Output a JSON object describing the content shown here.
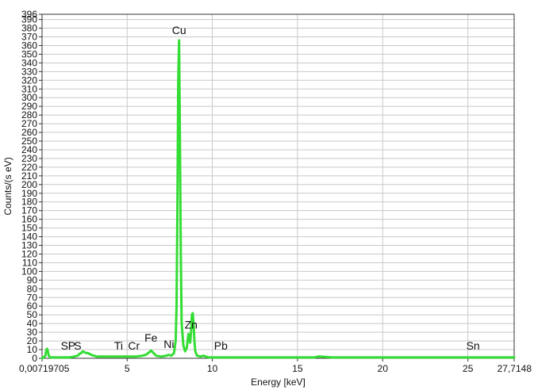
{
  "chart_data": {
    "type": "line",
    "title": "",
    "xlabel": "Energy [keV]",
    "ylabel": "Counts/(s eV)",
    "xlim": [
      0.00719705,
      27.7148
    ],
    "ylim": [
      0,
      396
    ],
    "x_ticks": [
      {
        "value": 0.00719705,
        "label": "0,00719705"
      },
      {
        "value": 5,
        "label": "5"
      },
      {
        "value": 10,
        "label": "10"
      },
      {
        "value": 15,
        "label": "15"
      },
      {
        "value": 20,
        "label": "20"
      },
      {
        "value": 25,
        "label": "25"
      },
      {
        "value": 27.7148,
        "label": "27,7148"
      }
    ],
    "y_ticks": [
      0,
      10,
      20,
      30,
      40,
      50,
      60,
      70,
      80,
      90,
      100,
      110,
      120,
      130,
      140,
      150,
      160,
      170,
      180,
      190,
      200,
      210,
      220,
      230,
      240,
      250,
      260,
      270,
      280,
      290,
      300,
      310,
      320,
      330,
      340,
      350,
      360,
      370,
      380,
      390,
      396
    ],
    "grid": true,
    "line_color": "#33dd33",
    "series": [
      {
        "x": [
          0.007,
          0.1,
          0.2,
          0.25,
          0.3,
          0.35,
          0.4,
          0.5,
          0.8,
          1.2,
          1.6,
          1.9,
          2.1,
          2.2,
          2.3,
          2.4,
          2.5,
          2.6,
          2.7,
          2.8,
          2.9,
          3.0,
          3.1,
          3.2,
          3.4,
          3.6,
          4.0,
          4.5,
          5.0,
          5.5,
          5.9,
          6.1,
          6.3,
          6.4,
          6.5,
          6.7,
          7.0,
          7.3,
          7.45,
          7.6,
          7.75,
          7.85,
          7.9,
          7.95,
          8.0,
          8.05,
          8.1,
          8.15,
          8.2,
          8.3,
          8.4,
          8.5,
          8.55,
          8.6,
          8.65,
          8.7,
          8.75,
          8.8,
          8.85,
          8.9,
          8.95,
          9.0,
          9.1,
          9.3,
          9.5,
          9.6,
          9.8,
          10.0,
          10.5,
          11,
          12,
          13,
          14,
          15,
          16,
          16.2,
          16.4,
          17,
          18,
          19,
          20,
          21,
          22,
          23,
          24,
          25,
          26,
          27,
          27.7148
        ],
        "y": [
          0,
          1,
          3,
          9,
          11,
          8,
          3,
          1,
          1,
          1,
          1,
          2,
          3,
          5,
          6,
          8,
          7,
          6,
          6,
          5,
          4,
          3,
          3,
          2,
          2,
          2,
          2,
          2,
          2,
          2,
          3,
          4,
          7,
          9,
          7,
          3,
          2,
          3,
          4,
          3,
          6,
          20,
          60,
          170,
          320,
          366,
          250,
          120,
          40,
          15,
          8,
          12,
          20,
          28,
          22,
          18,
          30,
          50,
          52,
          40,
          20,
          8,
          3,
          2,
          3,
          2,
          1,
          1,
          1,
          1,
          1,
          1,
          1,
          1,
          1,
          2,
          2,
          1,
          1,
          1,
          1,
          1,
          1,
          1,
          1,
          1,
          1,
          1,
          1
        ]
      }
    ],
    "annotations": [
      {
        "text": "Cu",
        "x": 8.05,
        "y": 373
      },
      {
        "text": "Zn",
        "x": 8.75,
        "y": 34
      },
      {
        "text": "Fe",
        "x": 6.4,
        "y": 19
      },
      {
        "text": "Ni",
        "x": 7.45,
        "y": 12
      },
      {
        "text": "Cr",
        "x": 5.4,
        "y": 10
      },
      {
        "text": "Ti",
        "x": 4.5,
        "y": 10
      },
      {
        "text": "Pb",
        "x": 10.5,
        "y": 10
      },
      {
        "text": "Sn",
        "x": 25.3,
        "y": 10
      },
      {
        "text": "Si",
        "x": 1.4,
        "y": 10
      },
      {
        "text": "P",
        "x": 1.75,
        "y": 10
      },
      {
        "text": "S",
        "x": 2.1,
        "y": 10
      }
    ]
  }
}
